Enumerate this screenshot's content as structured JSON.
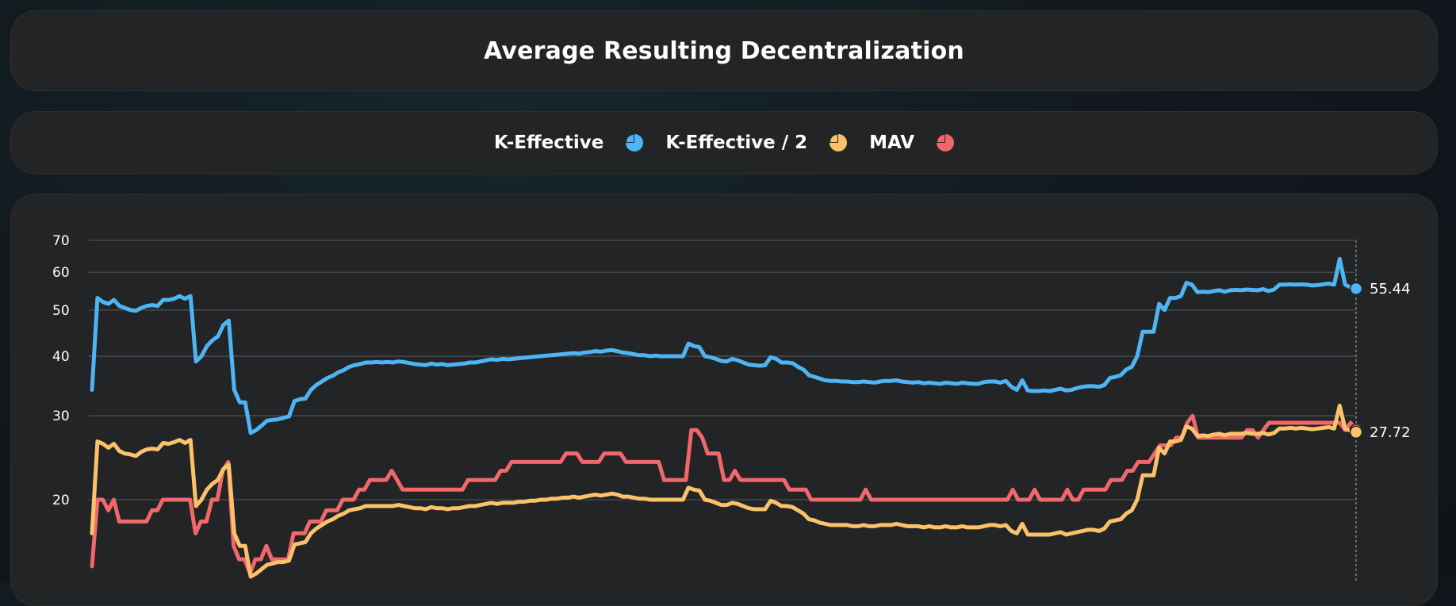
{
  "chart_data": {
    "type": "line",
    "title": "Average Resulting Decentralization",
    "xlabel": "",
    "ylabel": "",
    "y_scale": "log",
    "yticks": [
      20,
      30,
      40,
      50,
      60,
      70
    ],
    "ylim": [
      14,
      70
    ],
    "grid": true,
    "legend_placement": "top-center",
    "series": [
      {
        "name": "K-Effective",
        "color": "#4fb4f3",
        "values": [
          34,
          53,
          52,
          51.5,
          52.5,
          51,
          50.5,
          50,
          49.8,
          50.5,
          51,
          51.2,
          51,
          52.5,
          52.5,
          52.8,
          53.5,
          52.8,
          53.5,
          39,
          40,
          42,
          43.2,
          44,
          46.5,
          47.5,
          34,
          32,
          32,
          27.6,
          28,
          28.6,
          29.3,
          29.4,
          29.5,
          29.7,
          29.9,
          32.2,
          32.5,
          32.6,
          34,
          34.8,
          35.4,
          36,
          36.4,
          37,
          37.4,
          38,
          38.3,
          38.5,
          38.8,
          38.8,
          38.9,
          38.8,
          38.9,
          38.8,
          39,
          38.9,
          38.7,
          38.5,
          38.4,
          38.3,
          38.6,
          38.4,
          38.5,
          38.3,
          38.4,
          38.5,
          38.6,
          38.8,
          38.8,
          39,
          39.2,
          39.4,
          39.3,
          39.5,
          39.4,
          39.5,
          39.6,
          39.7,
          39.8,
          39.9,
          40,
          40.1,
          40.2,
          40.3,
          40.4,
          40.5,
          40.6,
          40.5,
          40.7,
          40.8,
          41,
          40.9,
          41.1,
          41.2,
          41,
          40.7,
          40.6,
          40.4,
          40.2,
          40.2,
          40,
          40.1,
          40,
          40,
          40,
          40,
          40,
          42.5,
          42,
          41.8,
          40,
          39.8,
          39.5,
          39.1,
          39,
          39.5,
          39.2,
          38.8,
          38.4,
          38.3,
          38.2,
          38.3,
          39.8,
          39.5,
          38.8,
          38.8,
          38.7,
          38,
          37.5,
          36.5,
          36.2,
          35.9,
          35.6,
          35.5,
          35.5,
          35.4,
          35.4,
          35.3,
          35.3,
          35.4,
          35.3,
          35.2,
          35.4,
          35.5,
          35.5,
          35.6,
          35.4,
          35.3,
          35.2,
          35.3,
          35.1,
          35.2,
          35.1,
          35,
          35.2,
          35.1,
          35,
          35.2,
          35.1,
          35,
          35,
          35.3,
          35.4,
          35.4,
          35.2,
          35.5,
          34.5,
          34,
          35.6,
          33.9,
          33.8,
          33.8,
          33.9,
          33.8,
          34,
          34.2,
          33.9,
          34,
          34.3,
          34.5,
          34.6,
          34.6,
          34.5,
          34.8,
          36,
          36.2,
          36.5,
          37.5,
          38,
          40,
          45,
          45,
          45,
          51.5,
          50,
          53,
          53,
          53.5,
          57,
          56.5,
          54.5,
          54.6,
          54.5,
          54.8,
          55,
          54.6,
          55,
          55.1,
          55,
          55.2,
          55.1,
          55,
          55.3,
          54.8,
          55.2,
          56.5,
          56.5,
          56.6,
          56.5,
          56.6,
          56.5,
          56.3,
          56.4,
          56.6,
          56.8,
          56.5,
          64,
          56.5,
          55.8,
          55.44
        ]
      },
      {
        "name": "K-Effective / 2",
        "color": "#fbc26a",
        "values": [
          17,
          26.5,
          26.2,
          25.7,
          26.2,
          25.3,
          25,
          24.9,
          24.7,
          25.2,
          25.5,
          25.6,
          25.5,
          26.3,
          26.2,
          26.4,
          26.7,
          26.3,
          26.7,
          19.4,
          20,
          21,
          21.6,
          22,
          23.2,
          23.7,
          17,
          16,
          16,
          13.8,
          14,
          14.3,
          14.6,
          14.7,
          14.8,
          14.8,
          14.9,
          16.1,
          16.2,
          16.3,
          17,
          17.4,
          17.7,
          18,
          18.2,
          18.5,
          18.7,
          19,
          19.1,
          19.2,
          19.4,
          19.4,
          19.4,
          19.4,
          19.4,
          19.4,
          19.5,
          19.4,
          19.3,
          19.2,
          19.2,
          19.1,
          19.3,
          19.2,
          19.2,
          19.1,
          19.2,
          19.2,
          19.3,
          19.4,
          19.4,
          19.5,
          19.6,
          19.7,
          19.6,
          19.7,
          19.7,
          19.7,
          19.8,
          19.8,
          19.9,
          19.9,
          20,
          20,
          20.1,
          20.1,
          20.2,
          20.2,
          20.3,
          20.2,
          20.3,
          20.4,
          20.5,
          20.4,
          20.5,
          20.6,
          20.5,
          20.3,
          20.3,
          20.2,
          20.1,
          20.1,
          20,
          20,
          20,
          20,
          20,
          20,
          20,
          21.2,
          21,
          20.9,
          20,
          19.9,
          19.7,
          19.5,
          19.5,
          19.7,
          19.6,
          19.4,
          19.2,
          19.1,
          19.1,
          19.1,
          19.9,
          19.7,
          19.4,
          19.4,
          19.3,
          19,
          18.7,
          18.2,
          18.1,
          17.9,
          17.8,
          17.7,
          17.7,
          17.7,
          17.7,
          17.6,
          17.6,
          17.7,
          17.6,
          17.6,
          17.7,
          17.7,
          17.7,
          17.8,
          17.7,
          17.6,
          17.6,
          17.6,
          17.5,
          17.6,
          17.5,
          17.5,
          17.6,
          17.5,
          17.5,
          17.6,
          17.5,
          17.5,
          17.5,
          17.6,
          17.7,
          17.7,
          17.6,
          17.7,
          17.2,
          17,
          17.8,
          16.9,
          16.9,
          16.9,
          16.9,
          16.9,
          17,
          17.1,
          16.9,
          17,
          17.1,
          17.2,
          17.3,
          17.3,
          17.2,
          17.4,
          18,
          18.1,
          18.2,
          18.7,
          19,
          20,
          22.5,
          22.5,
          22.5,
          25.7,
          25,
          26.5,
          26.5,
          26.7,
          28.5,
          28.2,
          27.2,
          27.3,
          27.2,
          27.4,
          27.5,
          27.3,
          27.5,
          27.5,
          27.5,
          27.6,
          27.5,
          27.5,
          27.6,
          27.4,
          27.6,
          28.2,
          28.2,
          28.3,
          28.2,
          28.3,
          28.2,
          28.1,
          28.2,
          28.3,
          28.4,
          28.2,
          31.5,
          28.2,
          27.9,
          27.72
        ]
      },
      {
        "name": "MAV",
        "color": "#f0686a",
        "values": [
          14.5,
          20,
          20,
          19,
          20,
          18,
          18,
          18,
          18,
          18,
          18,
          19,
          19,
          20,
          20,
          20,
          20,
          20,
          20,
          17,
          18,
          18,
          20,
          20,
          23,
          24,
          16,
          15,
          15,
          14,
          15,
          15,
          16,
          15,
          15,
          15,
          15,
          17,
          17,
          17,
          18,
          18,
          18,
          19,
          19,
          19,
          20,
          20,
          20,
          21,
          21,
          22,
          22,
          22,
          22,
          23,
          22,
          21,
          21,
          21,
          21,
          21,
          21,
          21,
          21,
          21,
          21,
          21,
          21,
          22,
          22,
          22,
          22,
          22,
          22,
          23,
          23,
          24,
          24,
          24,
          24,
          24,
          24,
          24,
          24,
          24,
          24,
          25,
          25,
          25,
          24,
          24,
          24,
          24,
          25,
          25,
          25,
          25,
          24,
          24,
          24,
          24,
          24,
          24,
          24,
          22,
          22,
          22,
          22,
          22,
          28,
          28,
          27,
          25,
          25,
          25,
          22,
          22,
          23,
          22,
          22,
          22,
          22,
          22,
          22,
          22,
          22,
          22,
          21,
          21,
          21,
          21,
          20,
          20,
          20,
          20,
          20,
          20,
          20,
          20,
          20,
          20,
          21,
          20,
          20,
          20,
          20,
          20,
          20,
          20,
          20,
          20,
          20,
          20,
          20,
          20,
          20,
          20,
          20,
          20,
          20,
          20,
          20,
          20,
          20,
          20,
          20,
          20,
          20,
          21,
          20,
          20,
          20,
          21,
          20,
          20,
          20,
          20,
          20,
          21,
          20,
          20,
          21,
          21,
          21,
          21,
          21,
          22,
          22,
          22,
          23,
          23,
          24,
          24,
          24,
          25,
          26,
          26,
          26,
          27,
          27,
          29,
          30,
          27,
          27,
          27,
          27,
          27,
          27,
          27,
          27,
          27,
          28,
          28,
          27,
          28,
          29,
          29,
          29,
          29,
          29,
          29,
          29,
          29,
          29,
          29,
          29,
          29,
          29,
          29,
          28,
          29,
          28
        ]
      }
    ],
    "end_labels": [
      "55.44",
      "27.72"
    ]
  }
}
